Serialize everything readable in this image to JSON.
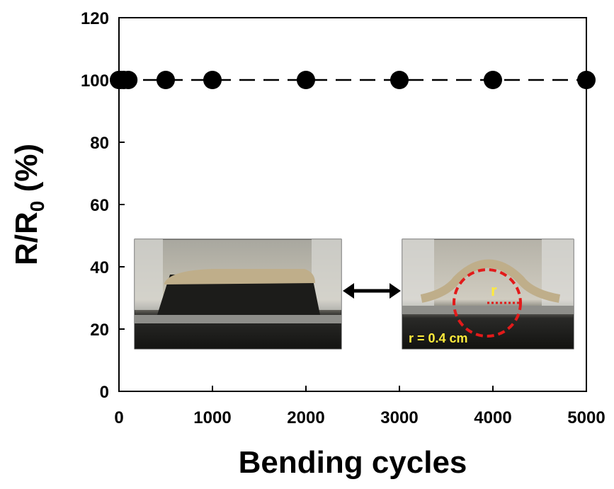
{
  "chart_data": {
    "type": "scatter",
    "x_label": "Bending cycles",
    "y_label": "R/R",
    "y_label_subscript": "0",
    "y_label_suffix": " (%)",
    "series": [
      {
        "color": "#000000",
        "x": [
          0,
          10,
          50,
          100,
          500,
          1000,
          2000,
          3000,
          4000,
          5000
        ],
        "values": [
          100,
          100,
          100,
          100,
          100,
          100,
          100,
          100,
          100,
          100
        ]
      }
    ],
    "line_style": "dashed",
    "xlim": [
      0,
      5000
    ],
    "xticks": [
      0,
      1000,
      2000,
      3000,
      4000,
      5000
    ],
    "ylim": [
      0,
      120
    ],
    "yticks": [
      0,
      20,
      40,
      60,
      80,
      100,
      120
    ],
    "annotations": [
      "r",
      "r = 0.4 cm"
    ]
  }
}
